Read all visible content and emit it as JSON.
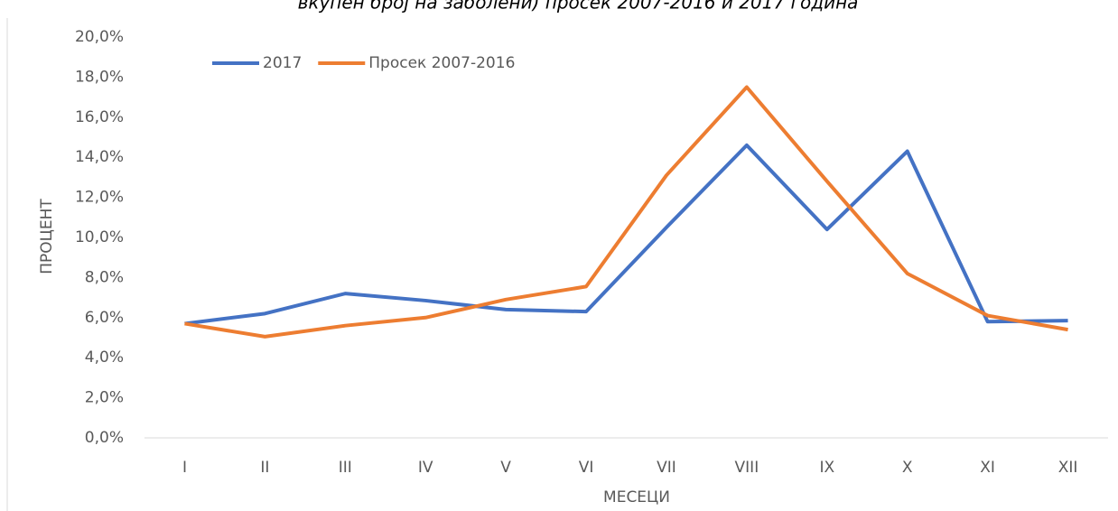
{
  "chart_data": {
    "type": "line",
    "title": "вкупен број на заболени) просек 2007-2016 и 2017 година",
    "x_label": "МЕСЕЦИ",
    "y_label": "ПРОЦЕНТ",
    "categories": [
      "I",
      "II",
      "III",
      "IV",
      "V",
      "VI",
      "VII",
      "VIII",
      "IX",
      "X",
      "XI",
      "XII"
    ],
    "series": [
      {
        "name": "2017",
        "color": "#4472c4",
        "values": [
          5.7,
          6.2,
          7.2,
          6.85,
          6.4,
          6.3,
          10.5,
          14.6,
          10.4,
          14.3,
          5.8,
          5.85
        ]
      },
      {
        "name": "Просек 2007-2016",
        "color": "#ed7d31",
        "values": [
          5.7,
          5.05,
          5.6,
          6.0,
          6.9,
          7.55,
          13.1,
          17.5,
          12.8,
          8.2,
          6.1,
          5.4
        ]
      }
    ],
    "ylim": [
      0,
      20
    ],
    "yticks": [
      {
        "value": 0,
        "label": "0,0%"
      },
      {
        "value": 2,
        "label": "2,0%"
      },
      {
        "value": 4,
        "label": "4,0%"
      },
      {
        "value": 6,
        "label": "6,0%"
      },
      {
        "value": 8,
        "label": "8,0%"
      },
      {
        "value": 10,
        "label": "10,0%"
      },
      {
        "value": 12,
        "label": "12,0%"
      },
      {
        "value": 14,
        "label": "14,0%"
      },
      {
        "value": 16,
        "label": "16,0%"
      },
      {
        "value": 18,
        "label": "18,0%"
      },
      {
        "value": 20,
        "label": "20,0%"
      }
    ],
    "grid": false,
    "legend": "top-left"
  }
}
